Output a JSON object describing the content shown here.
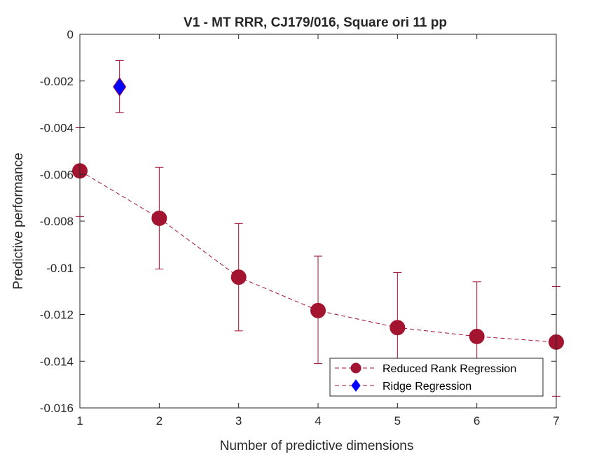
{
  "chart_data": {
    "type": "scatter",
    "title": "V1 - MT RRR, CJ179/016, Square ori 11 pp",
    "xlabel": "Number of predictive dimensions",
    "ylabel": "Predictive performance",
    "xlim": [
      1,
      7
    ],
    "ylim": [
      -0.016,
      0
    ],
    "xticks": [
      "1",
      "2",
      "3",
      "4",
      "5",
      "6",
      "7"
    ],
    "yticks": [
      "0",
      "-0.002",
      "-0.004",
      "-0.006",
      "-0.008",
      "-0.01",
      "-0.012",
      "-0.014",
      "-0.016"
    ],
    "grid": false,
    "legend_position": "bottom-right",
    "series": [
      {
        "name": "Reduced Rank Regression",
        "marker": "circle",
        "line": "dashed",
        "color": "#A2142F",
        "points": [
          {
            "x": 1,
            "y": -0.00585,
            "err_low": -0.0078,
            "err_high": -0.004
          },
          {
            "x": 2,
            "y": -0.00788,
            "err_low": -0.01005,
            "err_high": -0.0057
          },
          {
            "x": 3,
            "y": -0.0104,
            "err_low": -0.0127,
            "err_high": -0.0081
          },
          {
            "x": 4,
            "y": -0.01183,
            "err_low": -0.0141,
            "err_high": -0.0095
          },
          {
            "x": 5,
            "y": -0.01256,
            "err_low": -0.0149,
            "err_high": -0.0102
          },
          {
            "x": 6,
            "y": -0.01294,
            "err_low": -0.0153,
            "err_high": -0.0106
          },
          {
            "x": 7,
            "y": -0.01318,
            "err_low": -0.0155,
            "err_high": -0.0108
          }
        ]
      },
      {
        "name": "Ridge Regression",
        "marker": "diamond",
        "line": "none",
        "color": "#0000FF",
        "edge_color": "#A2142F",
        "points": [
          {
            "x": 1.5,
            "y": -0.00225,
            "err_low": -0.00335,
            "err_high": -0.00112
          }
        ]
      }
    ]
  }
}
